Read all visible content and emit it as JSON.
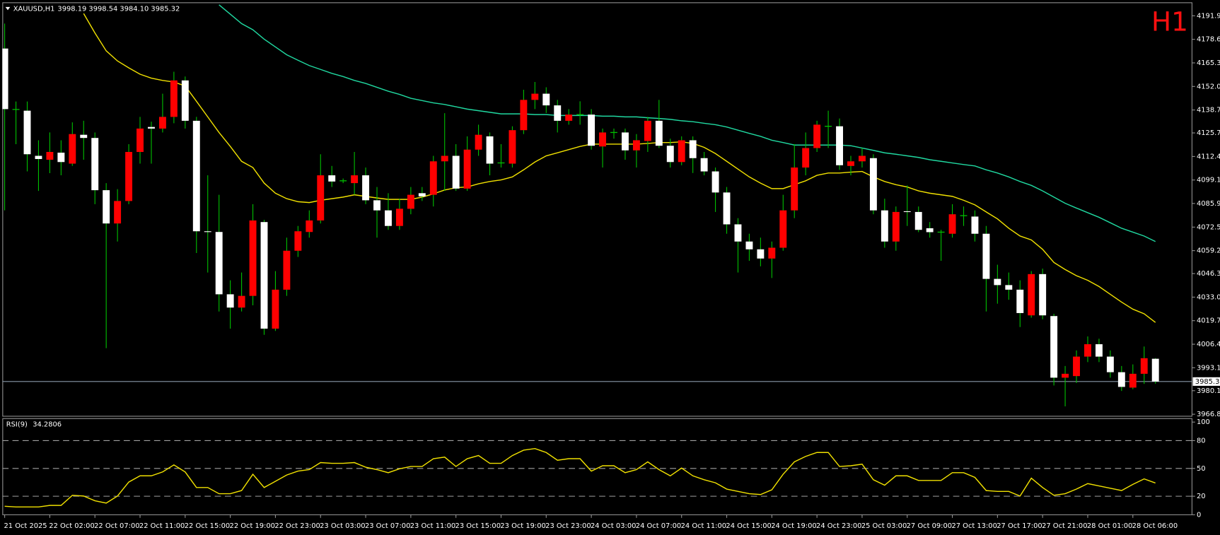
{
  "header": {
    "symbol": "XAUUSD,H1",
    "quote": "3998.19 3998.54 3984.10 3985.32",
    "timeframe": "H1"
  },
  "chart_data": [
    {
      "type": "candlestick",
      "categories": [
        "21 Oct 2025",
        null,
        null,
        null,
        "22 Oct 02:00",
        null,
        null,
        null,
        "22 Oct 07:00",
        null,
        null,
        null,
        "22 Oct 11:00",
        null,
        null,
        null,
        "22 Oct 15:00",
        null,
        null,
        null,
        "22 Oct 19:00",
        null,
        null,
        null,
        "22 Oct 23:00",
        null,
        null,
        null,
        "23 Oct 03:00",
        null,
        null,
        null,
        "23 Oct 07:00",
        null,
        null,
        null,
        "23 Oct 11:00",
        null,
        null,
        null,
        "23 Oct 15:00",
        null,
        null,
        null,
        "23 Oct 19:00",
        null,
        null,
        null,
        "23 Oct 23:00",
        null,
        null,
        null,
        "24 Oct 03:00",
        null,
        null,
        null,
        "24 Oct 07:00",
        null,
        null,
        null,
        "24 Oct 11:00",
        null,
        null,
        null,
        "24 Oct 15:00",
        null,
        null,
        null,
        "24 Oct 19:00",
        null,
        null,
        null,
        "24 Oct 23:00",
        null,
        null,
        null,
        "25 Oct 03:00",
        null,
        null,
        null,
        "27 Oct 09:00",
        null,
        null,
        null,
        "27 Oct 13:00",
        null,
        null,
        null,
        "27 Oct 17:00",
        null,
        null,
        null,
        "27 Oct 21:00",
        null,
        null,
        null,
        "28 Oct 01:00",
        null,
        null,
        null,
        "28 Oct 06:00",
        null,
        null
      ],
      "open": [
        4173.4,
        4139.0,
        4138.3,
        4112.8,
        4110.6,
        4114.6,
        4108.4,
        4124.7,
        4122.9,
        4093.4,
        4074.6,
        4087.3,
        4115.0,
        4129.1,
        4128.2,
        4134.8,
        4155.4,
        4132.6,
        4070.2,
        4069.8,
        4034.6,
        4027.1,
        4033.7,
        4075.4,
        4015.2,
        4037.2,
        4059.2,
        4069.8,
        4076.3,
        4101.8,
        4098.7,
        4097.4,
        4101.8,
        4087.7,
        4082.0,
        4073.2,
        4082.9,
        4091.7,
        4090.8,
        4109.7,
        4112.8,
        4094.3,
        4116.3,
        4123.8,
        4108.8,
        4108.4,
        4127.3,
        4144.4,
        4147.9,
        4141.3,
        4132.6,
        4136.1,
        4136.1,
        4118.1,
        4126.0,
        4126.0,
        4115.9,
        4121.2,
        4132.6,
        4118.5,
        4109.3,
        4121.6,
        4111.5,
        4104.0,
        4092.1,
        4074.1,
        4064.4,
        4060.0,
        4054.8,
        4060.9,
        4082.0,
        4106.2,
        4117.2,
        4129.5,
        4129.5,
        4107.1,
        4109.7,
        4111.5,
        4082.0,
        4064.4,
        4081.5,
        4081.1,
        4071.9,
        4069.7,
        4068.8,
        4079.0,
        4078.5,
        4068.8,
        4043.3,
        4039.8,
        4037.2,
        4022.7,
        4046.0,
        4022.3,
        3987.5,
        3988.4,
        3999.4,
        4006.4,
        3999.4,
        3990.6,
        3981.9,
        3989.7,
        3998.19
      ],
      "high": [
        4187.5,
        4143.5,
        4143.5,
        4121.6,
        4126.0,
        4121.6,
        4131.7,
        4132.6,
        4126.0,
        4097.4,
        4094.0,
        4119.4,
        4134.8,
        4132.1,
        4147.9,
        4160.3,
        4157.6,
        4134.8,
        4101.8,
        4090.8,
        4042.5,
        4046.9,
        4085.5,
        4076.7,
        4047.7,
        4066.6,
        4073.2,
        4082.0,
        4113.7,
        4107.1,
        4100.0,
        4115.0,
        4106.2,
        4095.2,
        4091.7,
        4088.6,
        4095.2,
        4095.2,
        4112.8,
        4136.9,
        4119.4,
        4123.8,
        4130.4,
        4126.0,
        4119.4,
        4129.5,
        4150.1,
        4154.5,
        4151.5,
        4144.4,
        4139.2,
        4143.6,
        4139.2,
        4128.2,
        4128.2,
        4128.2,
        4125.1,
        4134.8,
        4144.4,
        4122.5,
        4123.8,
        4123.8,
        4115.0,
        4106.2,
        4095.2,
        4077.6,
        4068.8,
        4066.6,
        4064.4,
        4090.8,
        4119.4,
        4126.0,
        4132.6,
        4138.3,
        4133.9,
        4112.8,
        4117.2,
        4113.7,
        4088.6,
        4084.2,
        4096.1,
        4084.2,
        4075.4,
        4071.0,
        4085.5,
        4084.2,
        4082.0,
        4073.2,
        4051.3,
        4046.9,
        4042.5,
        4047.7,
        4049.1,
        4023.6,
        3994.1,
        4002.9,
        4010.8,
        4009.5,
        4002.9,
        3994.1,
        3995.0,
        4005.1,
        3998.54
      ],
      "low": [
        4082.0,
        4119.4,
        4104.0,
        4093.0,
        4103.0,
        4101.8,
        4107.1,
        4110.6,
        4085.5,
        4004.2,
        4064.4,
        4085.5,
        4108.4,
        4108.4,
        4126.0,
        4131.2,
        4128.2,
        4057.9,
        4046.9,
        4024.9,
        4015.2,
        4024.9,
        4028.4,
        4011.7,
        4013.9,
        4033.7,
        4055.7,
        4066.6,
        4074.6,
        4095.2,
        4097.4,
        4090.8,
        4085.5,
        4066.6,
        4071.0,
        4071.0,
        4079.8,
        4087.3,
        4084.2,
        4093.0,
        4093.0,
        4093.0,
        4112.8,
        4101.8,
        4106.2,
        4106.2,
        4125.1,
        4139.2,
        4137.0,
        4126.0,
        4130.4,
        4130.4,
        4116.3,
        4106.2,
        4122.5,
        4110.6,
        4106.2,
        4115.0,
        4117.2,
        4106.2,
        4107.5,
        4103.1,
        4101.8,
        4081.1,
        4068.8,
        4046.9,
        4053.5,
        4050.4,
        4043.8,
        4059.2,
        4077.6,
        4101.8,
        4115.0,
        4117.2,
        4104.9,
        4101.8,
        4106.2,
        4079.8,
        4060.9,
        4059.2,
        4073.2,
        4069.7,
        4066.6,
        4053.5,
        4066.6,
        4073.2,
        4064.4,
        4024.9,
        4029.3,
        4031.5,
        4016.1,
        4021.4,
        4020.5,
        3983.1,
        3971.3,
        3984.5,
        3996.3,
        3996.3,
        3987.5,
        3980.0,
        3981.0,
        3984.0,
        3984.1
      ],
      "close": [
        4139.2,
        4139.0,
        4113.7,
        4111.0,
        4115.0,
        4109.3,
        4125.1,
        4122.9,
        4093.4,
        4074.6,
        4087.3,
        4115.0,
        4128.2,
        4128.2,
        4134.8,
        4155.4,
        4132.6,
        4070.2,
        4069.8,
        4034.6,
        4027.1,
        4033.7,
        4076.3,
        4015.2,
        4037.2,
        4059.2,
        4070.2,
        4076.3,
        4101.8,
        4098.3,
        4098.7,
        4101.8,
        4087.7,
        4082.0,
        4073.2,
        4082.9,
        4090.8,
        4089.9,
        4109.7,
        4112.8,
        4094.3,
        4116.3,
        4124.7,
        4108.4,
        4108.8,
        4127.3,
        4144.4,
        4147.9,
        4141.3,
        4132.6,
        4136.1,
        4136.1,
        4118.5,
        4126.0,
        4126.0,
        4115.9,
        4121.6,
        4132.6,
        4118.5,
        4109.3,
        4121.6,
        4111.5,
        4104.0,
        4092.1,
        4074.1,
        4064.4,
        4060.0,
        4054.8,
        4060.9,
        4082.0,
        4106.2,
        4117.2,
        4130.4,
        4129.5,
        4107.5,
        4109.7,
        4112.8,
        4082.0,
        4064.4,
        4081.1,
        4081.1,
        4071.0,
        4069.7,
        4069.7,
        4079.8,
        4079.0,
        4068.8,
        4043.3,
        4039.8,
        4037.2,
        4024.0,
        4046.0,
        4022.7,
        3987.5,
        3989.7,
        3999.4,
        4006.4,
        3999.4,
        3990.6,
        3982.3,
        3989.7,
        3998.5,
        3985.32
      ],
      "bull_color": "#ff0000",
      "bear_color": "#ffffff",
      "wick_color": "#00c000",
      "series": [
        {
          "color": "#f0e000",
          "values": [
            null,
            null,
            null,
            null,
            null,
            null,
            null,
            4193.2,
            4182.2,
            4172.1,
            4166.4,
            4162.5,
            4158.9,
            4156.7,
            4155.4,
            4154.5,
            4152.3,
            4143.6,
            4134.8,
            4126.0,
            4118.1,
            4109.7,
            4106.2,
            4097.4,
            4091.7,
            4088.6,
            4086.9,
            4086.4,
            4087.7,
            4088.6,
            4089.5,
            4090.8,
            4089.9,
            4089.0,
            4088.2,
            4088.2,
            4088.2,
            4089.5,
            4091.3,
            4093.5,
            4094.8,
            4095.2,
            4097.0,
            4098.3,
            4099.2,
            4100.9,
            4104.9,
            4109.3,
            4112.8,
            4114.5,
            4116.3,
            4118.1,
            4119.4,
            4119.4,
            4119.4,
            4119.4,
            4119.4,
            4119.8,
            4120.3,
            4120.3,
            4120.7,
            4119.8,
            4117.6,
            4114.1,
            4109.7,
            4105.3,
            4100.9,
            4097.4,
            4094.3,
            4094.3,
            4096.5,
            4098.7,
            4101.8,
            4103.1,
            4103.1,
            4103.6,
            4104.0,
            4100.9,
            4098.3,
            4096.5,
            4095.2,
            4093.0,
            4091.7,
            4090.8,
            4089.9,
            4087.7,
            4085.1,
            4081.1,
            4077.2,
            4071.9,
            4067.5,
            4065.3,
            4060.0,
            4052.6,
            4048.6,
            4045.1,
            4042.5,
            4039.0,
            4034.6,
            4030.2,
            4026.2,
            4023.6,
            4018.7
          ]
        },
        {
          "color": "#20d8a0",
          "values": [
            null,
            null,
            null,
            null,
            null,
            null,
            null,
            null,
            null,
            null,
            null,
            null,
            null,
            null,
            null,
            null,
            null,
            null,
            null,
            4198.1,
            4192.8,
            4187.5,
            4184.0,
            4178.7,
            4174.3,
            4169.9,
            4166.8,
            4163.8,
            4161.6,
            4159.4,
            4157.6,
            4155.4,
            4153.7,
            4151.5,
            4149.3,
            4147.5,
            4145.3,
            4144.0,
            4142.7,
            4141.8,
            4140.5,
            4139.2,
            4138.3,
            4137.4,
            4136.5,
            4136.5,
            4136.5,
            4136.1,
            4136.1,
            4135.6,
            4135.6,
            4135.6,
            4135.6,
            4135.2,
            4135.2,
            4134.8,
            4134.8,
            4134.3,
            4133.9,
            4133.4,
            4132.6,
            4132.1,
            4131.2,
            4130.4,
            4129.1,
            4127.3,
            4125.5,
            4123.8,
            4121.6,
            4120.3,
            4118.9,
            4118.9,
            4118.9,
            4118.9,
            4118.9,
            4118.5,
            4117.2,
            4115.9,
            4114.5,
            4113.7,
            4112.8,
            4111.9,
            4110.6,
            4109.7,
            4108.8,
            4107.9,
            4107.1,
            4104.9,
            4103.1,
            4100.9,
            4098.3,
            4096.1,
            4093.0,
            4089.5,
            4086.0,
            4083.3,
            4080.7,
            4078.1,
            4075.0,
            4071.9,
            4069.7,
            4067.5,
            4064.4
          ]
        }
      ],
      "ylim": [
        3965.5,
        4199.5
      ],
      "yticks": [
        {
          "value": 4191.9,
          "label": "4191.90"
        },
        {
          "value": 4178.6,
          "label": "4178.60"
        },
        {
          "value": 4165.3,
          "label": "4165.30"
        },
        {
          "value": 4152,
          "label": "4152.00"
        },
        {
          "value": 4138.7,
          "label": "4138.70"
        },
        {
          "value": 4125.75,
          "label": "4125.75"
        },
        {
          "value": 4112.45,
          "label": "4112.45"
        },
        {
          "value": 4099.15,
          "label": "4099.15"
        },
        {
          "value": 4085.9,
          "label": "4085.90"
        },
        {
          "value": 4072.55,
          "label": "4072.55"
        },
        {
          "value": 4059.25,
          "label": "4059.25"
        },
        {
          "value": 4046.3,
          "label": "4046.30"
        },
        {
          "value": 4033,
          "label": "4033.00"
        },
        {
          "value": 4019.7,
          "label": "4019.70"
        },
        {
          "value": 4006.4,
          "label": "4006.40"
        },
        {
          "value": 3993.1,
          "label": "3993.10"
        },
        {
          "value": 3980.15,
          "label": "3980.15"
        },
        {
          "value": 3966.85,
          "label": "3966.85"
        }
      ],
      "price_line": 3985.32,
      "price_line_color": "#8898a8"
    },
    {
      "type": "line",
      "title": "RSI(9)",
      "color": "#f0e000",
      "values": [
        9.2,
        8.4,
        8.4,
        8.4,
        10.1,
        10.1,
        21.0,
        20.2,
        15.1,
        12.6,
        20.2,
        35.3,
        42.0,
        42.0,
        46.2,
        53.8,
        46.2,
        29.4,
        29.4,
        22.7,
        22.7,
        26.1,
        43.7,
        29.4,
        36.1,
        42.9,
        47.1,
        48.7,
        56.3,
        55.5,
        55.5,
        56.3,
        51.3,
        48.7,
        45.4,
        49.6,
        52.1,
        52.1,
        60.5,
        62.2,
        52.1,
        60.5,
        63.9,
        55.5,
        55.5,
        63.9,
        69.7,
        71.4,
        67.2,
        58.8,
        60.5,
        60.5,
        47.1,
        52.9,
        52.9,
        45.4,
        48.7,
        57.1,
        48.7,
        42.0,
        50.4,
        42.0,
        37.8,
        34.5,
        27.7,
        25.2,
        22.7,
        21.8,
        26.9,
        43.7,
        57.1,
        63.0,
        67.2,
        67.2,
        52.1,
        52.9,
        54.6,
        37.8,
        31.9,
        42.0,
        42.0,
        37.0,
        37.0,
        37.0,
        45.4,
        45.4,
        40.3,
        26.1,
        25.2,
        25.2,
        20.2,
        39.5,
        29.4,
        21.0,
        22.7,
        27.7,
        33.6,
        31.1,
        28.6,
        26.1,
        32.8,
        38.7,
        34.2806
      ],
      "ylim": [
        0,
        104.2
      ],
      "yticks": [
        100,
        80,
        50,
        20,
        0
      ],
      "levels": [
        80,
        50,
        20
      ],
      "level_color": "#a0a0a0"
    }
  ]
}
